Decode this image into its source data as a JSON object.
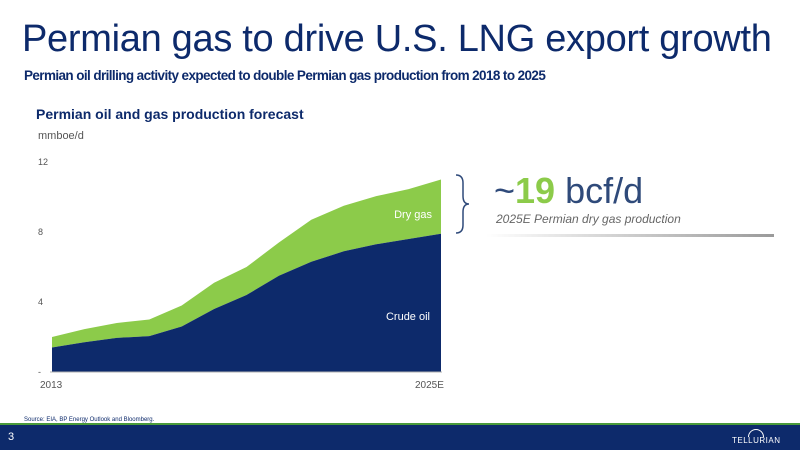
{
  "slide": {
    "title": "Permian gas to drive U.S. LNG export growth",
    "subtitle": "Permian oil drilling activity expected to double Permian gas production from 2018 to 2025",
    "page_number": "3",
    "source": "Source: EIA, BP Energy Outlook and Bloomberg.",
    "logo_text": "TELLURIAN"
  },
  "callout": {
    "prefix": "~",
    "value": "19",
    "unit": " bcf/d",
    "description": "2025E Permian dry gas production"
  },
  "chart_data": {
    "type": "area",
    "stacked": true,
    "title": "Permian oil and gas production forecast",
    "ylabel": "mmboe/d",
    "x": [
      2013,
      2014,
      2015,
      2016,
      2017,
      2018,
      2019,
      2020,
      2021,
      2022,
      2023,
      2024,
      2025
    ],
    "x_tick_labels": [
      "2013",
      "2025E"
    ],
    "y_tick_labels": [
      "-",
      "4",
      "8",
      "12"
    ],
    "y_ticks": [
      0,
      4,
      8,
      12
    ],
    "ylim": [
      0,
      12
    ],
    "series": [
      {
        "name": "Crude oil",
        "color": "#0d2a6b",
        "values": [
          1.4,
          1.7,
          1.95,
          2.05,
          2.6,
          3.6,
          4.4,
          5.5,
          6.3,
          6.9,
          7.3,
          7.6,
          7.9
        ]
      },
      {
        "name": "Dry gas",
        "color": "#8ccb4a",
        "values": [
          0.6,
          0.75,
          0.85,
          0.95,
          1.2,
          1.5,
          1.6,
          1.9,
          2.4,
          2.6,
          2.75,
          2.85,
          3.1
        ]
      }
    ],
    "grid": false,
    "legend": "inline labels"
  }
}
